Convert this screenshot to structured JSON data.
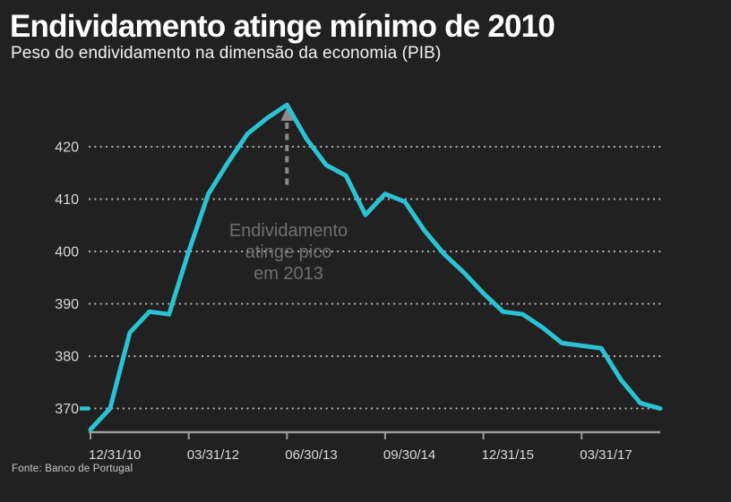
{
  "header": {
    "title": "Endividamento atinge mínimo de 2010",
    "subtitle": "Peso do endividamento na dimensão da economia (PIB)"
  },
  "annotation": {
    "lines": [
      "Endividamento",
      "atinge pico",
      "em 2013"
    ]
  },
  "source": "Fonte: Banco de Portugal",
  "colors": {
    "background": "#212121",
    "line": "#2BC3D4",
    "grid": "#cccccc",
    "axis": "#9b9b9b",
    "tick_label": "#d9d9d9",
    "annotation": "#6f6f6f",
    "arrow": "#8a8a8a"
  },
  "chart_data": {
    "type": "line",
    "title": "Endividamento atinge mínimo de 2010",
    "subtitle": "Peso do endividamento na dimensão da economia (PIB)",
    "x": [
      "12/31/10",
      "03/31/11",
      "06/30/11",
      "09/30/11",
      "12/31/11",
      "03/31/12",
      "06/30/12",
      "09/30/12",
      "12/31/12",
      "03/31/13",
      "06/30/13",
      "09/30/13",
      "12/31/13",
      "03/31/14",
      "06/30/14",
      "09/30/14",
      "12/31/14",
      "03/31/15",
      "06/30/15",
      "09/30/15",
      "12/31/15",
      "03/31/16",
      "06/30/16",
      "09/30/16",
      "12/31/16",
      "03/31/17",
      "06/30/17",
      "09/30/17",
      "12/31/17",
      "03/31/18"
    ],
    "values": [
      366,
      370,
      384.5,
      388.5,
      388,
      400,
      411,
      417,
      422.5,
      425.5,
      428,
      421.5,
      416.5,
      414.5,
      407,
      411,
      409.5,
      404,
      399.5,
      396,
      392,
      388.5,
      388,
      385.5,
      382.5,
      382,
      381.5,
      375.5,
      371,
      370
    ],
    "yticks": [
      370,
      380,
      390,
      400,
      410,
      420
    ],
    "xtick_labels": [
      "12/31/10",
      "03/31/12",
      "06/30/13",
      "09/30/14",
      "12/31/15",
      "03/31/17"
    ],
    "xtick_every": 5,
    "ylim": [
      365.5,
      429.5
    ],
    "grid": "dotted-horizontal",
    "legend": "none",
    "peak": {
      "index": 10,
      "x": "06/30/13",
      "value": 428
    },
    "min_marker_value": 370,
    "annotation_text": "Endividamento atinge pico em 2013"
  }
}
